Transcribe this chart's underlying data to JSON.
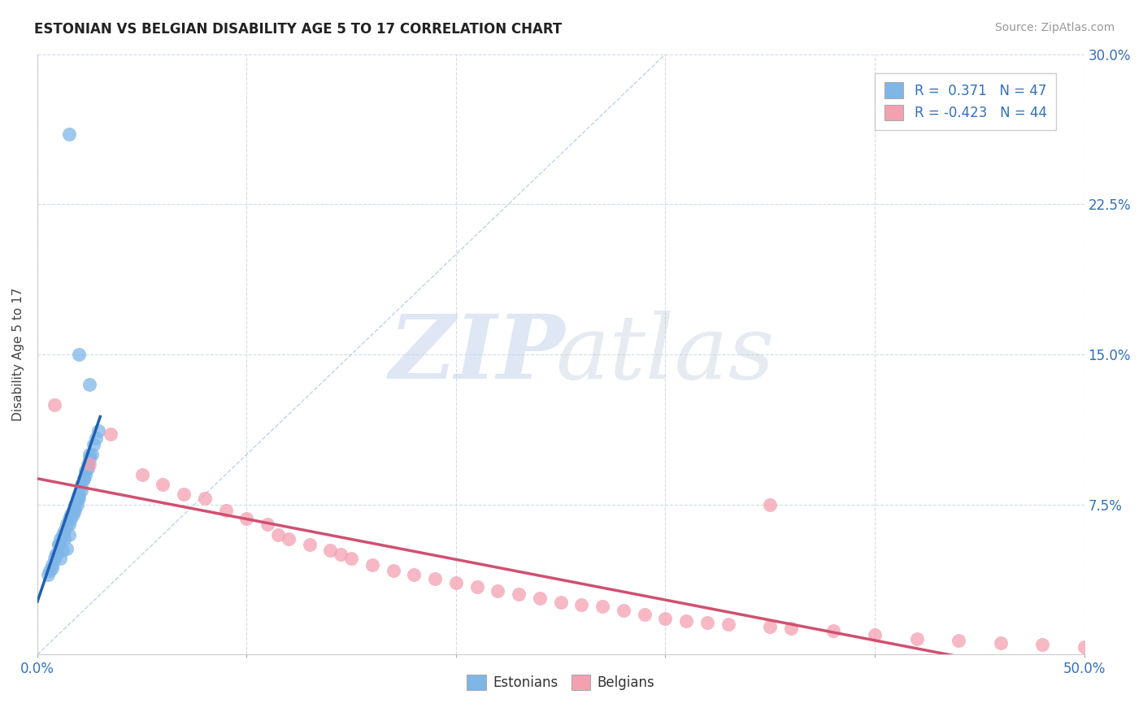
{
  "title": "ESTONIAN VS BELGIAN DISABILITY AGE 5 TO 17 CORRELATION CHART",
  "source": "Source: ZipAtlas.com",
  "ylabel": "Disability Age 5 to 17",
  "xlim": [
    0.0,
    0.5
  ],
  "ylim": [
    0.0,
    0.3
  ],
  "xticks": [
    0.0,
    0.1,
    0.2,
    0.3,
    0.4,
    0.5
  ],
  "xtick_labels": [
    "0.0%",
    "",
    "",
    "",
    "",
    "50.0%"
  ],
  "yticks": [
    0.0,
    0.075,
    0.15,
    0.225,
    0.3
  ],
  "ytick_labels_right": [
    "",
    "7.5%",
    "15.0%",
    "22.5%",
    "30.0%"
  ],
  "R_estonian": 0.371,
  "N_estonian": 47,
  "R_belgian": -0.423,
  "N_belgian": 44,
  "estonian_color": "#7EB6E8",
  "belgian_color": "#F4A0B0",
  "estonian_line_color": "#2060B0",
  "belgian_line_color": "#D05070",
  "ref_line_color": "#B0C8E0",
  "legend_text_color": "#3070C0",
  "estonian_x": [
    0.005,
    0.007,
    0.009,
    0.01,
    0.011,
    0.012,
    0.013,
    0.014,
    0.015,
    0.015,
    0.016,
    0.017,
    0.018,
    0.019,
    0.02,
    0.021,
    0.022,
    0.023,
    0.024,
    0.025,
    0.006,
    0.008,
    0.01,
    0.011,
    0.013,
    0.015,
    0.017,
    0.019,
    0.021,
    0.023,
    0.025,
    0.027,
    0.029,
    0.007,
    0.009,
    0.012,
    0.014,
    0.016,
    0.018,
    0.02,
    0.022,
    0.024,
    0.026,
    0.028,
    0.015,
    0.02,
    0.025
  ],
  "estonian_y": [
    0.04,
    0.045,
    0.05,
    0.055,
    0.048,
    0.052,
    0.058,
    0.053,
    0.06,
    0.065,
    0.068,
    0.07,
    0.072,
    0.075,
    0.078,
    0.082,
    0.088,
    0.092,
    0.095,
    0.1,
    0.042,
    0.048,
    0.055,
    0.058,
    0.062,
    0.068,
    0.072,
    0.078,
    0.085,
    0.09,
    0.098,
    0.105,
    0.112,
    0.043,
    0.05,
    0.06,
    0.065,
    0.07,
    0.075,
    0.08,
    0.088,
    0.093,
    0.1,
    0.108,
    0.26,
    0.15,
    0.135
  ],
  "belgian_x": [
    0.008,
    0.025,
    0.035,
    0.05,
    0.06,
    0.07,
    0.08,
    0.09,
    0.1,
    0.11,
    0.115,
    0.12,
    0.13,
    0.14,
    0.145,
    0.15,
    0.16,
    0.17,
    0.18,
    0.19,
    0.2,
    0.21,
    0.22,
    0.23,
    0.24,
    0.25,
    0.26,
    0.27,
    0.28,
    0.29,
    0.3,
    0.31,
    0.32,
    0.33,
    0.35,
    0.36,
    0.38,
    0.4,
    0.42,
    0.44,
    0.46,
    0.48,
    0.5,
    0.35
  ],
  "belgian_y": [
    0.125,
    0.095,
    0.11,
    0.09,
    0.085,
    0.08,
    0.078,
    0.072,
    0.068,
    0.065,
    0.06,
    0.058,
    0.055,
    0.052,
    0.05,
    0.048,
    0.045,
    0.042,
    0.04,
    0.038,
    0.036,
    0.034,
    0.032,
    0.03,
    0.028,
    0.026,
    0.025,
    0.024,
    0.022,
    0.02,
    0.018,
    0.017,
    0.016,
    0.015,
    0.014,
    0.013,
    0.012,
    0.01,
    0.008,
    0.007,
    0.006,
    0.005,
    0.004,
    0.075
  ],
  "figsize": [
    14.06,
    8.92
  ],
  "dpi": 100
}
